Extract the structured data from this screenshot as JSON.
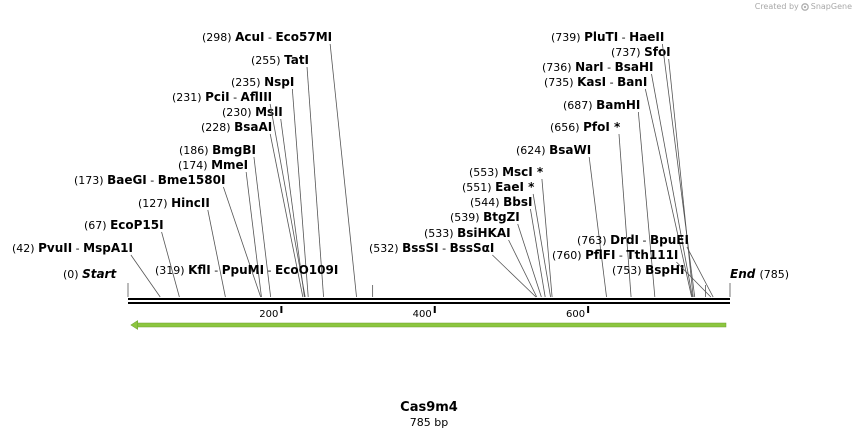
{
  "credit": {
    "prefix": "Created by",
    "brand": "SnapGene"
  },
  "plasmid": {
    "name": "Cas9m4",
    "length_label": "785 bp",
    "length_bp": 785
  },
  "ruler": {
    "ticks": [
      200,
      400,
      600
    ]
  },
  "feature": {
    "start": 1,
    "end": 785,
    "direction": "reverse",
    "color": "#8cc63f"
  },
  "ends": {
    "start": {
      "position": "(0)",
      "label": "Start"
    },
    "end": {
      "position": "(785)",
      "label": "End"
    }
  },
  "sites": [
    {
      "pos": 42,
      "position": "(42)",
      "names": [
        "PvuII",
        "MspA1I"
      ]
    },
    {
      "pos": 67,
      "position": "(67)",
      "names": [
        "EcoP15I"
      ]
    },
    {
      "pos": 127,
      "position": "(127)",
      "names": [
        "HincII"
      ]
    },
    {
      "pos": 173,
      "position": "(173)",
      "names": [
        "BaeGI",
        "Bme1580I"
      ]
    },
    {
      "pos": 174,
      "position": "(174)",
      "names": [
        "MmeI"
      ]
    },
    {
      "pos": 186,
      "position": "(186)",
      "names": [
        "BmgBI"
      ]
    },
    {
      "pos": 228,
      "position": "(228)",
      "names": [
        "BsaAI"
      ]
    },
    {
      "pos": 230,
      "position": "(230)",
      "names": [
        "MslI"
      ]
    },
    {
      "pos": 231,
      "position": "(231)",
      "names": [
        "PciI",
        "AflIII"
      ]
    },
    {
      "pos": 235,
      "position": "(235)",
      "names": [
        "NspI"
      ]
    },
    {
      "pos": 255,
      "position": "(255)",
      "names": [
        "TatI"
      ]
    },
    {
      "pos": 298,
      "position": "(298)",
      "names": [
        "AcuI",
        "Eco57MI"
      ]
    },
    {
      "pos": 319,
      "position": "(319)",
      "names": [
        "KflI",
        "PpuMI",
        "EcoO109I"
      ]
    },
    {
      "pos": 532,
      "position": "(532)",
      "names": [
        "BssSI",
        "BssSαI"
      ]
    },
    {
      "pos": 533,
      "position": "(533)",
      "names": [
        "BsiHKAI"
      ]
    },
    {
      "pos": 539,
      "position": "(539)",
      "names": [
        "BtgZI"
      ]
    },
    {
      "pos": 544,
      "position": "(544)",
      "names": [
        "BbsI"
      ]
    },
    {
      "pos": 551,
      "position": "(551)",
      "names": [
        "EaeI *"
      ]
    },
    {
      "pos": 553,
      "position": "(553)",
      "names": [
        "MscI *"
      ]
    },
    {
      "pos": 624,
      "position": "(624)",
      "names": [
        "BsaWI"
      ]
    },
    {
      "pos": 656,
      "position": "(656)",
      "names": [
        "PfoI *"
      ]
    },
    {
      "pos": 687,
      "position": "(687)",
      "names": [
        "BamHI"
      ]
    },
    {
      "pos": 735,
      "position": "(735)",
      "names": [
        "KasI",
        "BanI"
      ]
    },
    {
      "pos": 736,
      "position": "(736)",
      "names": [
        "NarI",
        "BsaHI"
      ]
    },
    {
      "pos": 737,
      "position": "(737)",
      "names": [
        "SfoI"
      ]
    },
    {
      "pos": 739,
      "position": "(739)",
      "names": [
        "PluTI",
        "HaeII"
      ]
    },
    {
      "pos": 753,
      "position": "(753)",
      "names": [
        "BspHI"
      ]
    },
    {
      "pos": 760,
      "position": "(760)",
      "names": [
        "PflFI",
        "Tth111I"
      ]
    },
    {
      "pos": 763,
      "position": "(763)",
      "names": [
        "DrdI",
        "BpuEI"
      ]
    }
  ]
}
